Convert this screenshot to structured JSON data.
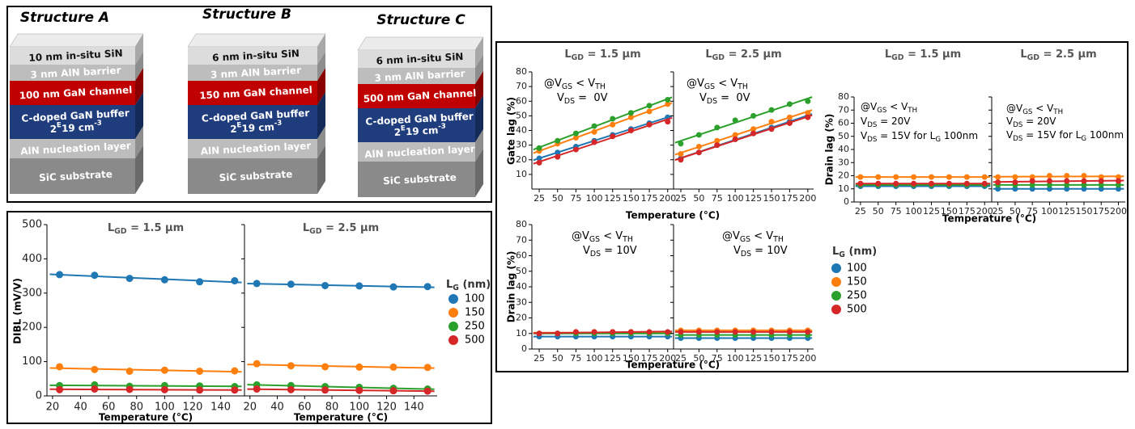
{
  "structures": [
    {
      "title": "Structure A",
      "layers": [
        [
          [
            {
              "t": "10 nm in-situ SiN"
            }
          ]
        ],
        [
          [
            {
              "t": "3 nm AlN barrier"
            }
          ]
        ],
        [
          [
            {
              "t": "100 nm GaN channel"
            }
          ]
        ],
        [
          [
            {
              "t": "C-doped GaN buffer"
            }
          ],
          [
            {
              "t": "2"
            },
            {
              "t": "E",
              "sup": true
            },
            {
              "t": "19 cm"
            },
            {
              "t": "-3",
              "sup": true
            }
          ]
        ],
        [
          [
            {
              "t": "AlN nucleation layer"
            }
          ]
        ],
        [
          [
            {
              "t": "SiC substrate"
            }
          ]
        ]
      ]
    },
    {
      "title": "Structure B",
      "layers": [
        [
          [
            {
              "t": "6 nm in-situ SiN"
            }
          ]
        ],
        [
          [
            {
              "t": "3 nm AlN barrier"
            }
          ]
        ],
        [
          [
            {
              "t": "150 nm GaN channel"
            }
          ]
        ],
        [
          [
            {
              "t": "C-doped GaN buffer"
            }
          ],
          [
            {
              "t": "2"
            },
            {
              "t": "E",
              "sup": true
            },
            {
              "t": "19 cm"
            },
            {
              "t": "-3",
              "sup": true
            }
          ]
        ],
        [
          [
            {
              "t": "AlN nucleation layer"
            }
          ]
        ],
        [
          [
            {
              "t": "SiC substrate"
            }
          ]
        ]
      ]
    },
    {
      "title": "Structure C",
      "layers": [
        [
          [
            {
              "t": "6 nm in-situ SiN"
            }
          ]
        ],
        [
          [
            {
              "t": "3 nm AlN barrier"
            }
          ]
        ],
        [
          [
            {
              "t": "500 nm GaN channel"
            }
          ]
        ],
        [
          [
            {
              "t": "C-doped GaN buffer"
            }
          ],
          [
            {
              "t": "2"
            },
            {
              "t": "E",
              "sup": true
            },
            {
              "t": "19 cm"
            },
            {
              "t": "-3",
              "sup": true
            }
          ]
        ],
        [
          [
            {
              "t": "AlN nucleation layer"
            }
          ]
        ],
        [
          [
            {
              "t": "SiC substrate"
            }
          ]
        ]
      ]
    }
  ],
  "chart_data": [
    {
      "type": "scatter",
      "title_parts": [
        {
          "t": "L"
        },
        {
          "t": "GD",
          "sub": true
        },
        {
          "t": " = 1.5 µm"
        }
      ],
      "ylabel": "DIBL (mV/V)",
      "xlabel": "Temperature (°C)",
      "x": [
        25,
        50,
        75,
        100,
        125,
        150
      ],
      "xlim": [
        16,
        157
      ],
      "ylim": [
        0,
        500
      ],
      "xticks": [
        20,
        40,
        60,
        80,
        100,
        120,
        140
      ],
      "yticks": [
        0,
        100,
        200,
        300,
        400,
        500
      ],
      "trend_line": true,
      "legend_title": [
        {
          "t": "L"
        },
        {
          "t": "G",
          "sub": true
        },
        {
          "t": " (nm)"
        }
      ],
      "series": [
        {
          "name": "100",
          "color": "#1f77b4",
          "values": [
            354,
            352,
            343,
            339,
            333,
            336
          ]
        },
        {
          "name": "150",
          "color": "#ff7f0e",
          "values": [
            85,
            77,
            72,
            75,
            72,
            73
          ]
        },
        {
          "name": "250",
          "color": "#2ca02c",
          "values": [
            30,
            32,
            28,
            30,
            29,
            27
          ]
        },
        {
          "name": "500",
          "color": "#d62728",
          "values": [
            18,
            20,
            19,
            18,
            17,
            17
          ]
        }
      ]
    },
    {
      "type": "scatter",
      "title_parts": [
        {
          "t": "L"
        },
        {
          "t": "GD",
          "sub": true
        },
        {
          "t": " = 2.5 µm"
        }
      ],
      "xlabel": "Temperature (°C)",
      "x": [
        25,
        50,
        75,
        100,
        125,
        150
      ],
      "xlim": [
        16,
        157
      ],
      "ylim": [
        0,
        500
      ],
      "xticks": [
        20,
        40,
        60,
        80,
        100,
        120,
        140
      ],
      "yticks": [
        0,
        100,
        200,
        300,
        400,
        500
      ],
      "trend_line": true,
      "series": [
        {
          "color": "#1f77b4",
          "values": [
            328,
            326,
            322,
            321,
            318,
            319
          ]
        },
        {
          "color": "#ff7f0e",
          "values": [
            94,
            88,
            85,
            84,
            84,
            83
          ]
        },
        {
          "color": "#2ca02c",
          "values": [
            32,
            30,
            27,
            25,
            22,
            20
          ]
        },
        {
          "color": "#d62728",
          "values": [
            20,
            18,
            17,
            16,
            15,
            14
          ]
        }
      ]
    },
    {
      "type": "scatter",
      "title_parts": [
        {
          "t": "L"
        },
        {
          "t": "GD",
          "sub": true
        },
        {
          "t": " = 1.5 µm"
        }
      ],
      "ylabel": "Gate lag (%)",
      "xlabel": "Temperature (°C)",
      "annotations": [
        [
          {
            "t": "@V"
          },
          {
            "t": "GS",
            "sub": true
          },
          {
            "t": " < V"
          },
          {
            "t": "TH",
            "sub": true
          }
        ],
        [
          {
            "t": "V"
          },
          {
            "t": "DS",
            "sub": true
          },
          {
            "t": " =  0V"
          }
        ]
      ],
      "x": [
        25,
        50,
        75,
        100,
        125,
        150,
        175,
        200
      ],
      "xlim": [
        15,
        208
      ],
      "ylim": [
        0,
        80
      ],
      "xticks": [
        25,
        50,
        75,
        100,
        125,
        150,
        175,
        200
      ],
      "yticks": [
        10,
        20,
        30,
        40,
        50,
        60,
        70,
        80
      ],
      "trend_line": true,
      "legend_title": [
        {
          "t": "L"
        },
        {
          "t": "G",
          "sub": true
        },
        {
          "t": " (nm)"
        }
      ],
      "series": [
        {
          "name": "100",
          "color": "#1f77b4",
          "values": [
            21,
            25,
            29,
            33,
            37,
            41,
            45,
            49
          ]
        },
        {
          "name": "150",
          "color": "#ff7f0e",
          "values": [
            26,
            31,
            35,
            39,
            44,
            49,
            53,
            58
          ]
        },
        {
          "name": "250",
          "color": "#2ca02c",
          "values": [
            28,
            33,
            38,
            43,
            48,
            52,
            57,
            61
          ]
        },
        {
          "name": "500",
          "color": "#d62728",
          "values": [
            18,
            22,
            27,
            32,
            36,
            40,
            44,
            46
          ]
        }
      ]
    },
    {
      "type": "scatter",
      "title_parts": [
        {
          "t": "L"
        },
        {
          "t": "GD",
          "sub": true
        },
        {
          "t": " = 2.5 µm"
        }
      ],
      "annotations": [
        [
          {
            "t": "@V"
          },
          {
            "t": "GS",
            "sub": true
          },
          {
            "t": " < V"
          },
          {
            "t": "TH",
            "sub": true
          }
        ],
        [
          {
            "t": "V"
          },
          {
            "t": "DS",
            "sub": true
          },
          {
            "t": " =  0V"
          }
        ]
      ],
      "x": [
        25,
        50,
        75,
        100,
        125,
        150,
        175,
        200
      ],
      "xlim": [
        15,
        208
      ],
      "ylim": [
        0,
        80
      ],
      "xticks": [
        25,
        50,
        75,
        100,
        125,
        150,
        175,
        200
      ],
      "yticks": [
        10,
        20,
        30,
        40,
        50,
        60,
        70,
        80
      ],
      "trend_line": true,
      "series": [
        {
          "color": "#1f77b4",
          "values": [
            21,
            25,
            30,
            34,
            38,
            42,
            46,
            50
          ]
        },
        {
          "color": "#ff7f0e",
          "values": [
            24,
            29,
            33,
            37,
            41,
            46,
            49,
            52
          ]
        },
        {
          "color": "#2ca02c",
          "values": [
            31,
            37,
            42,
            47,
            50,
            54,
            58,
            60
          ]
        },
        {
          "color": "#d62728",
          "values": [
            20,
            25,
            30,
            34,
            38,
            41,
            45,
            49
          ]
        }
      ]
    },
    {
      "type": "scatter",
      "ylabel": "Drain lag (%)",
      "xlabel": "Temperature (°C)",
      "annotations": [
        [
          {
            "t": "@V"
          },
          {
            "t": "GS",
            "sub": true
          },
          {
            "t": " < V"
          },
          {
            "t": "TH",
            "sub": true
          }
        ],
        [
          {
            "t": "V"
          },
          {
            "t": "DS",
            "sub": true
          },
          {
            "t": " = 10V"
          }
        ]
      ],
      "x": [
        25,
        50,
        75,
        100,
        125,
        150,
        175,
        200
      ],
      "xlim": [
        15,
        208
      ],
      "ylim": [
        0,
        80
      ],
      "xticks": [
        25,
        50,
        75,
        100,
        125,
        150,
        175,
        200
      ],
      "yticks": [
        0,
        10,
        20,
        30,
        40,
        50,
        60,
        70,
        80
      ],
      "trend_line": true,
      "series": [
        {
          "color": "#1f77b4",
          "values": [
            8,
            8,
            8,
            8,
            8,
            8,
            8,
            8
          ]
        },
        {
          "color": "#ff7f0e",
          "values": [
            10,
            10,
            11,
            11,
            11,
            11,
            10,
            10
          ]
        },
        {
          "color": "#2ca02c",
          "values": [
            10,
            10,
            10,
            10,
            10,
            10,
            10,
            10
          ]
        },
        {
          "color": "#d62728",
          "values": [
            10,
            10,
            11,
            11,
            11,
            11,
            11,
            11
          ]
        }
      ]
    },
    {
      "type": "scatter",
      "annotations": [
        [
          {
            "t": "@V"
          },
          {
            "t": "GS",
            "sub": true
          },
          {
            "t": " < V"
          },
          {
            "t": "TH",
            "sub": true
          }
        ],
        [
          {
            "t": "V"
          },
          {
            "t": "DS",
            "sub": true
          },
          {
            "t": " = 10V"
          }
        ]
      ],
      "x": [
        25,
        50,
        75,
        100,
        125,
        150,
        175,
        200
      ],
      "xlim": [
        15,
        208
      ],
      "ylim": [
        0,
        80
      ],
      "xticks": [
        25,
        50,
        75,
        100,
        125,
        150,
        175,
        200
      ],
      "yticks": [
        0,
        10,
        20,
        30,
        40,
        50,
        60,
        70,
        80
      ],
      "trend_line": true,
      "series": [
        {
          "color": "#1f77b4",
          "values": [
            7,
            7,
            7,
            7,
            7,
            7,
            7,
            7
          ]
        },
        {
          "color": "#ff7f0e",
          "values": [
            12,
            12,
            12,
            12,
            12,
            12,
            12,
            12
          ]
        },
        {
          "color": "#2ca02c",
          "values": [
            9,
            9,
            9,
            9,
            9,
            9,
            9,
            9
          ]
        },
        {
          "color": "#d62728",
          "values": [
            11,
            11,
            11,
            11,
            11,
            11,
            11,
            11
          ]
        }
      ]
    },
    {
      "type": "scatter",
      "title_parts": [
        {
          "t": "L"
        },
        {
          "t": "GD",
          "sub": true
        },
        {
          "t": " = 1.5 µm"
        }
      ],
      "ylabel": "Drain lag (%)",
      "xlabel": "Temperature (°C)",
      "annotations": [
        [
          {
            "t": "@V"
          },
          {
            "t": "GS",
            "sub": true
          },
          {
            "t": " < V"
          },
          {
            "t": "TH",
            "sub": true
          }
        ],
        [
          {
            "t": "V"
          },
          {
            "t": "DS",
            "sub": true
          },
          {
            "t": " = 20V"
          }
        ],
        [
          {
            "t": "V"
          },
          {
            "t": "DS",
            "sub": true
          },
          {
            "t": " = 15V for L"
          },
          {
            "t": "G",
            "sub": true
          },
          {
            "t": " 100nm"
          }
        ]
      ],
      "x": [
        25,
        50,
        75,
        100,
        125,
        150,
        175,
        200
      ],
      "xlim": [
        16,
        210
      ],
      "ylim": [
        0,
        80
      ],
      "xticks": [
        25,
        50,
        75,
        100,
        125,
        150,
        175,
        200
      ],
      "yticks": [
        0,
        10,
        20,
        30,
        40,
        50,
        60,
        70,
        80
      ],
      "trend_line": true,
      "series": [
        {
          "color": "#1f77b4",
          "values": [
            12,
            12,
            12,
            12,
            12,
            12,
            12,
            12
          ]
        },
        {
          "color": "#ff7f0e",
          "values": [
            19,
            19,
            19,
            19,
            19,
            19,
            19,
            19
          ]
        },
        {
          "color": "#2ca02c",
          "values": [
            13,
            13,
            13,
            13,
            13,
            13,
            13,
            13
          ]
        },
        {
          "color": "#d62728",
          "values": [
            14,
            14,
            14,
            14,
            14,
            14,
            14,
            14
          ]
        }
      ]
    },
    {
      "type": "scatter",
      "title_parts": [
        {
          "t": "L"
        },
        {
          "t": "GD",
          "sub": true
        },
        {
          "t": " = 2.5 µm"
        }
      ],
      "annotations": [
        [
          {
            "t": "@V"
          },
          {
            "t": "GS",
            "sub": true
          },
          {
            "t": " < V"
          },
          {
            "t": "TH",
            "sub": true
          }
        ],
        [
          {
            "t": "V"
          },
          {
            "t": "DS",
            "sub": true
          },
          {
            "t": " = 20V"
          }
        ],
        [
          {
            "t": "V"
          },
          {
            "t": "DS",
            "sub": true
          },
          {
            "t": " = 15V for L"
          },
          {
            "t": "G",
            "sub": true
          },
          {
            "t": " 100nm"
          }
        ]
      ],
      "x": [
        25,
        50,
        75,
        100,
        125,
        150,
        175,
        200
      ],
      "xlim": [
        16,
        210
      ],
      "ylim": [
        0,
        80
      ],
      "xticks": [
        25,
        50,
        75,
        100,
        125,
        150,
        175,
        200
      ],
      "yticks": [
        0,
        10,
        20,
        30,
        40,
        50,
        60,
        70,
        80
      ],
      "trend_line": true,
      "series": [
        {
          "color": "#1f77b4",
          "values": [
            10,
            10,
            10,
            10,
            10,
            10,
            10,
            10
          ]
        },
        {
          "color": "#ff7f0e",
          "values": [
            19,
            19,
            19,
            20,
            20,
            20,
            19,
            19
          ]
        },
        {
          "color": "#2ca02c",
          "values": [
            13,
            13,
            13,
            13,
            13,
            13,
            13,
            13
          ]
        },
        {
          "color": "#d62728",
          "values": [
            15,
            15,
            16,
            16,
            16,
            16,
            16,
            16
          ]
        }
      ]
    }
  ]
}
